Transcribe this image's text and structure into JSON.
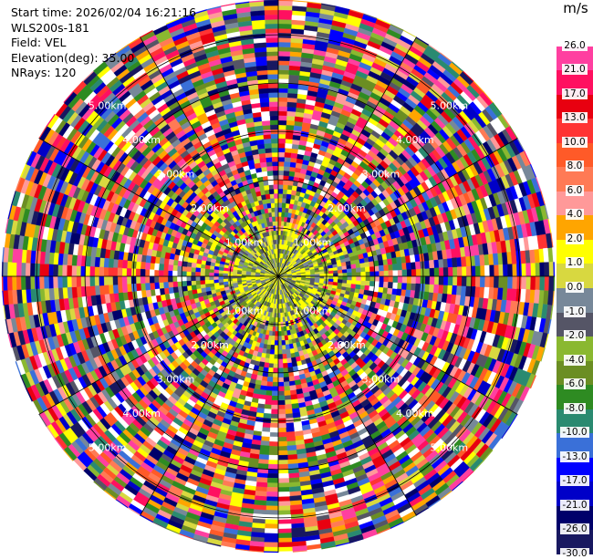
{
  "info": {
    "start_time": "Start time: 2026/02/04 16:21:16",
    "instrument": "WLS200s-181",
    "field": "Field: VEL",
    "elevation": "Elevation(deg): 35.00",
    "nrays": "NRays: 120"
  },
  "chart_data": {
    "type": "heatmap",
    "subtype": "polar-ppi",
    "field": "VEL",
    "unit": "m/s",
    "nrays": 120,
    "range_rings_km": [
      1.0,
      2.0,
      3.0,
      4.0,
      5.0
    ],
    "ring_labels": [
      "1.00km",
      "2.00km",
      "3.00km",
      "4.00km",
      "5.00km"
    ],
    "colorbar_labels": [
      "26.0",
      "21.0",
      "17.0",
      "13.0",
      "10.0",
      "8.0",
      "6.0",
      "4.0",
      "2.0",
      "1.0",
      "0.0",
      "-1.0",
      "-2.0",
      "-4.0",
      "-6.0",
      "-8.0",
      "-10.0",
      "-13.0",
      "-17.0",
      "-21.0",
      "-26.0",
      "-30.0"
    ],
    "colorbar_colors": [
      "#ffffff",
      "#ff3fa0",
      "#ff1060",
      "#e80010",
      "#ff3333",
      "#ff5a28",
      "#ff7a55",
      "#ff9999",
      "#ffa500",
      "#ffff00",
      "#d8d840",
      "#778899",
      "#555566",
      "#8ab830",
      "#6b8e23",
      "#2e8b22",
      "#2a8a70",
      "#3a70d8",
      "#0000ff",
      "#0000c8",
      "#00006a",
      "#181860"
    ]
  }
}
